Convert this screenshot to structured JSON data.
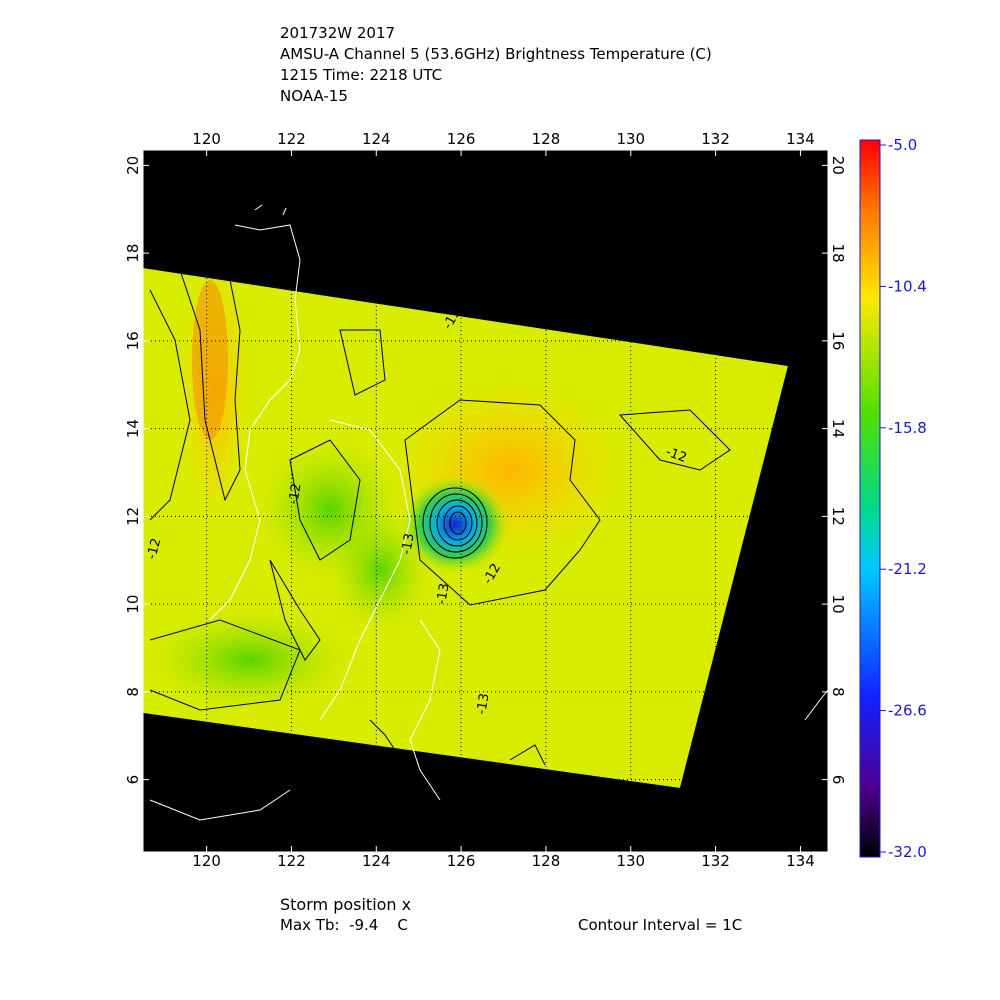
{
  "header": {
    "lines": [
      "201732W 2017",
      "AMSU-A Channel 5 (53.6GHz) Brightness Temperature (C)",
      "1215 Time: 2218 UTC",
      "NOAA-15"
    ]
  },
  "map": {
    "xlim": [
      118.5,
      134.65
    ],
    "ylim": [
      4.35,
      20.35
    ],
    "xticks": [
      120,
      122,
      124,
      126,
      128,
      130,
      132,
      134
    ],
    "yticks": [
      6,
      8,
      10,
      12,
      14,
      16,
      18,
      20
    ],
    "contour_labels": [
      "-13",
      "-12",
      "-12",
      "-12",
      "-13",
      "-13",
      "-12",
      "-13"
    ]
  },
  "colorbar": {
    "lim": [
      -32,
      -5
    ],
    "ticks": [
      {
        "value": -5,
        "label": "-5.0"
      },
      {
        "value": -10.4,
        "label": "-10.4"
      },
      {
        "value": -15.8,
        "label": "-15.8"
      },
      {
        "value": -21.2,
        "label": "-21.2"
      },
      {
        "value": -26.6,
        "label": "-26.6"
      },
      {
        "value": -32,
        "label": "-32.0"
      }
    ]
  },
  "footer": {
    "storm": "Storm position x",
    "max_tb": "Max Tb:  -9.4    C",
    "interval": "Contour Interval = 1C"
  }
}
